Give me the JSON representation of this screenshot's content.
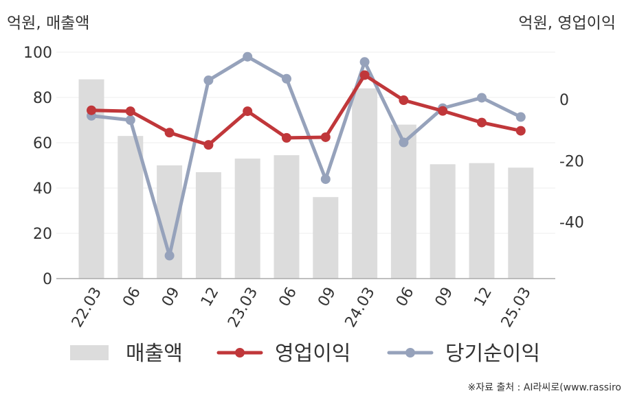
{
  "header": {
    "left_unit": "억원, 매출액",
    "right_unit": "억원, 영업이익"
  },
  "footer": {
    "source": "※자료 출처 : AI라씨로(www.rassiro"
  },
  "colors": {
    "bar": "#dcdcdc",
    "operating_profit": "#c0373a",
    "net_income": "#96a2bb",
    "axis": "#aaaaaa",
    "grid": "#eeeeee"
  },
  "chart_data": {
    "type": "bar+line",
    "categories": [
      "22.03",
      "06",
      "09",
      "12",
      "23.03",
      "06",
      "09",
      "24.03",
      "06",
      "09",
      "12",
      "25.03"
    ],
    "left_axis": {
      "label": "억원, 매출액",
      "range": [
        0,
        100
      ],
      "ticks": [
        0,
        20,
        40,
        60,
        80,
        100
      ]
    },
    "right_axis": {
      "label": "억원, 영업이익",
      "range": [
        -58.5,
        15.5
      ],
      "ticks": [
        0,
        -20,
        -40
      ]
    },
    "grid": true,
    "legend_position": "bottom",
    "series": [
      {
        "name": "매출액",
        "type": "bar",
        "axis": "left",
        "values": [
          88,
          63,
          50,
          47,
          53,
          54.5,
          36,
          84,
          68,
          50.5,
          51,
          49
        ]
      },
      {
        "name": "영업이익",
        "type": "line",
        "axis": "right",
        "values": [
          -3.5,
          -3.8,
          -10.8,
          -14.8,
          -3.8,
          -12.5,
          -12.3,
          8,
          -0.2,
          -3.7,
          -7.5,
          -10.2
        ]
      },
      {
        "name": "당기순이익",
        "type": "line",
        "axis": "right",
        "values": [
          -5.3,
          -6.7,
          -51,
          6.3,
          14,
          6.8,
          -26,
          12.3,
          -14,
          -2.8,
          0.6,
          -5.7
        ]
      }
    ]
  }
}
